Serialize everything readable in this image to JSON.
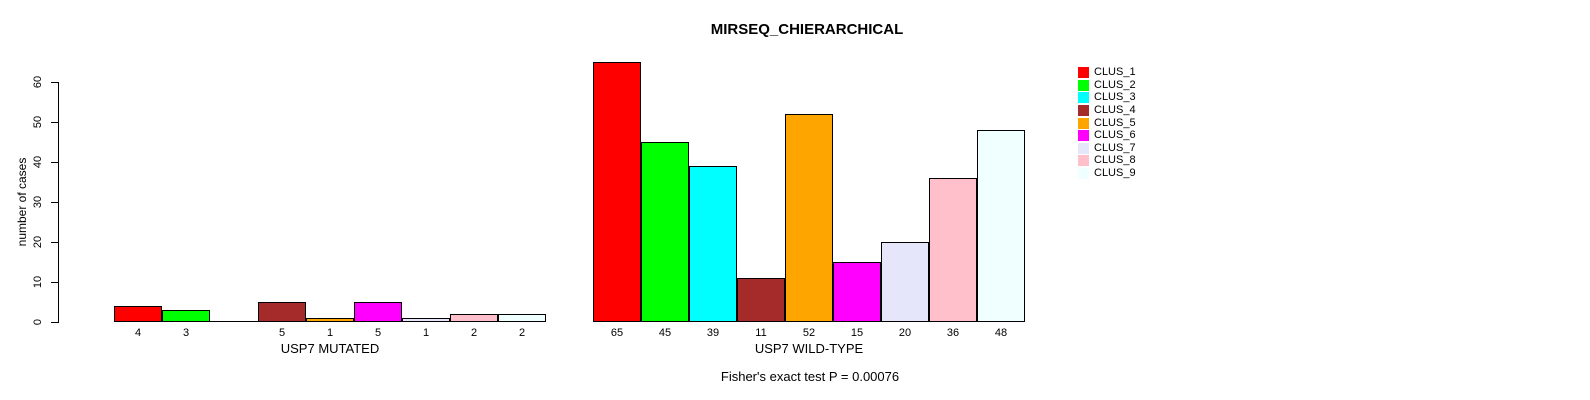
{
  "chart_data": {
    "type": "bar",
    "title": "MIRSEQ_CHIERARCHICAL",
    "ylabel": "number of cases",
    "ylim": [
      0,
      60
    ],
    "yticks": [
      0,
      10,
      20,
      30,
      40,
      50,
      60
    ],
    "grid": false,
    "legend_position": "right",
    "clusters": [
      "CLUS_1",
      "CLUS_2",
      "CLUS_3",
      "CLUS_4",
      "CLUS_5",
      "CLUS_6",
      "CLUS_7",
      "CLUS_8",
      "CLUS_9"
    ],
    "colors": [
      "#FF0000",
      "#00FF00",
      "#00FFFF",
      "#A52A2A",
      "#FFA500",
      "#FF00FF",
      "#E6E6FA",
      "#FFC0CB",
      "#F0FFFF"
    ],
    "groups": [
      {
        "label": "USP7 MUTATED",
        "values": [
          4,
          3,
          0,
          5,
          1,
          5,
          1,
          2,
          2
        ],
        "bar_labels": [
          "4",
          "3",
          "",
          "5",
          "1",
          "5",
          "1",
          "2",
          "2"
        ]
      },
      {
        "label": "USP7 WILD-TYPE",
        "values": [
          65,
          45,
          39,
          11,
          52,
          15,
          20,
          36,
          48
        ],
        "bar_labels": [
          "65",
          "45",
          "39",
          "11",
          "52",
          "15",
          "20",
          "36",
          "48"
        ]
      }
    ],
    "footnote": "Fisher's exact test P = 0.00076"
  }
}
